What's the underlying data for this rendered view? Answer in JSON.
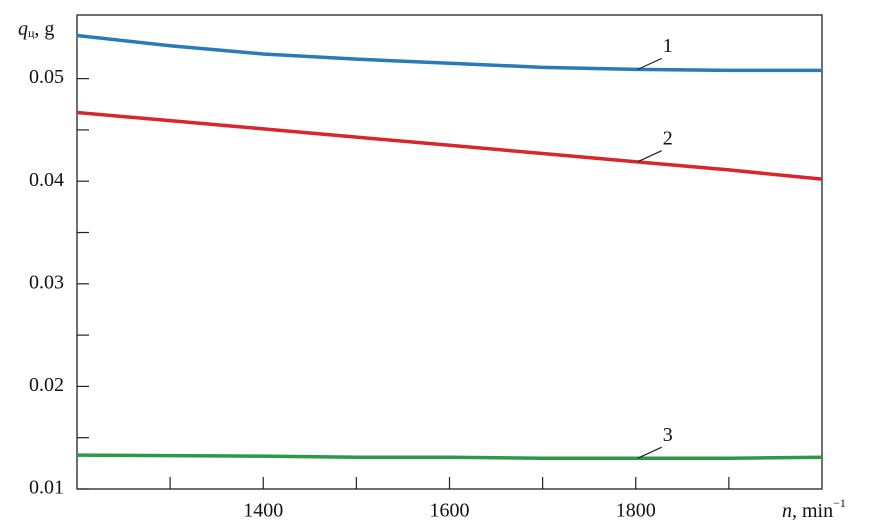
{
  "chart_data": {
    "type": "line",
    "y_label": {
      "symbol": "q",
      "subscript": "ц",
      "unit": ", g"
    },
    "x_label": {
      "symbol": "n",
      "unit": ", min",
      "superscript": "−1"
    },
    "x": [
      1200,
      1300,
      1400,
      1500,
      1600,
      1700,
      1800,
      1900,
      2000
    ],
    "series": [
      {
        "name": "1",
        "color": "#2a7ab8",
        "values": [
          0.0542,
          0.0532,
          0.0524,
          0.0519,
          0.0515,
          0.0511,
          0.0509,
          0.0508,
          0.0508
        ]
      },
      {
        "name": "2",
        "color": "#d8262c",
        "values": [
          0.0467,
          0.0459,
          0.0451,
          0.0443,
          0.0435,
          0.0427,
          0.0419,
          0.0411,
          0.0402
        ]
      },
      {
        "name": "3",
        "color": "#2a9a48",
        "values": [
          0.0133,
          0.01325,
          0.0132,
          0.0131,
          0.0131,
          0.013,
          0.013,
          0.013,
          0.0131
        ]
      }
    ],
    "label_at_x": 1800,
    "xlim": [
      1200,
      2000
    ],
    "ylim": [
      0.01,
      0.0562
    ],
    "xticks": [
      1400,
      1600,
      1800
    ],
    "xminorticks": [
      1300,
      1500,
      1700,
      1900
    ],
    "yticks": [
      0.01,
      0.02,
      0.03,
      0.04,
      0.05
    ],
    "yminorticks": [
      0.015,
      0.025,
      0.035,
      0.045
    ],
    "grid": false
  }
}
